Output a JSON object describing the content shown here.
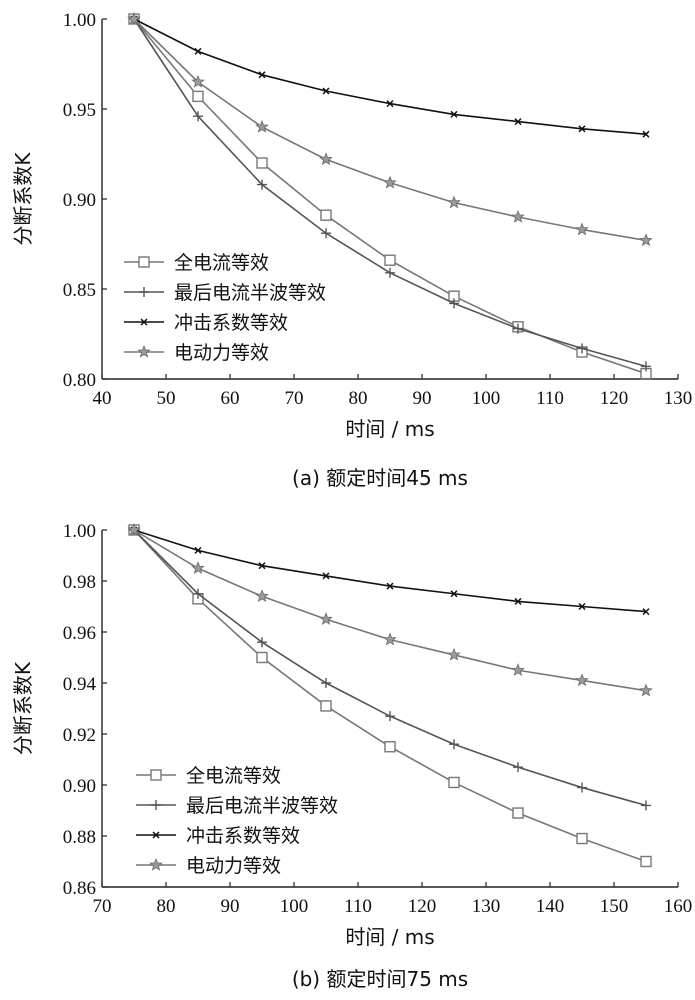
{
  "chart_data": [
    {
      "type": "line",
      "caption": "(a)  额定时间45 ms",
      "xlabel": "时间 / ms",
      "ylabel": "分断系数K",
      "xlim": [
        40,
        130
      ],
      "ylim": [
        0.8,
        1.0
      ],
      "xticks": [
        "40",
        "50",
        "60",
        "70",
        "80",
        "90",
        "100",
        "110",
        "120",
        "130"
      ],
      "yticks": [
        "0.80",
        "0.85",
        "0.90",
        "0.95",
        "1.00"
      ],
      "legend_position": "lower-left",
      "grid": false,
      "x": [
        45,
        55,
        65,
        75,
        85,
        95,
        105,
        115,
        125
      ],
      "series": [
        {
          "name": "全电流等效",
          "marker": "square",
          "color": "#777777",
          "values": [
            1.0,
            0.957,
            0.92,
            0.891,
            0.866,
            0.846,
            0.829,
            0.815,
            0.803
          ]
        },
        {
          "name": "最后电流半波等效",
          "marker": "plus",
          "color": "#555555",
          "values": [
            1.0,
            0.946,
            0.908,
            0.881,
            0.859,
            0.842,
            0.828,
            0.817,
            0.807
          ]
        },
        {
          "name": "冲击系数等效",
          "marker": "x",
          "color": "#111111",
          "values": [
            1.0,
            0.982,
            0.969,
            0.96,
            0.953,
            0.947,
            0.943,
            0.939,
            0.936
          ]
        },
        {
          "name": "电动力等效",
          "marker": "star",
          "color": "#777777",
          "values": [
            1.0,
            0.965,
            0.94,
            0.922,
            0.909,
            0.898,
            0.89,
            0.883,
            0.877
          ]
        }
      ]
    },
    {
      "type": "line",
      "caption": "(b)  额定时间75 ms",
      "xlabel": "时间 / ms",
      "ylabel": "分断系数K",
      "xlim": [
        70,
        160
      ],
      "ylim": [
        0.86,
        1.0
      ],
      "xticks": [
        "70",
        "80",
        "90",
        "100",
        "110",
        "120",
        "130",
        "140",
        "150",
        "160"
      ],
      "yticks": [
        "0.86",
        "0.88",
        "0.90",
        "0.92",
        "0.94",
        "0.96",
        "0.98",
        "1.00"
      ],
      "legend_position": "lower-left",
      "grid": false,
      "x": [
        75,
        85,
        95,
        105,
        115,
        125,
        135,
        145,
        155
      ],
      "series": [
        {
          "name": "全电流等效",
          "marker": "square",
          "color": "#777777",
          "values": [
            1.0,
            0.973,
            0.95,
            0.931,
            0.915,
            0.901,
            0.889,
            0.879,
            0.87
          ]
        },
        {
          "name": "最后电流半波等效",
          "marker": "plus",
          "color": "#555555",
          "values": [
            1.0,
            0.975,
            0.956,
            0.94,
            0.927,
            0.916,
            0.907,
            0.899,
            0.892
          ]
        },
        {
          "name": "冲击系数等效",
          "marker": "x",
          "color": "#111111",
          "values": [
            1.0,
            0.992,
            0.986,
            0.982,
            0.978,
            0.975,
            0.972,
            0.97,
            0.968
          ]
        },
        {
          "name": "电动力等效",
          "marker": "star",
          "color": "#777777",
          "values": [
            1.0,
            0.985,
            0.974,
            0.965,
            0.957,
            0.951,
            0.945,
            0.941,
            0.937
          ]
        }
      ]
    }
  ]
}
